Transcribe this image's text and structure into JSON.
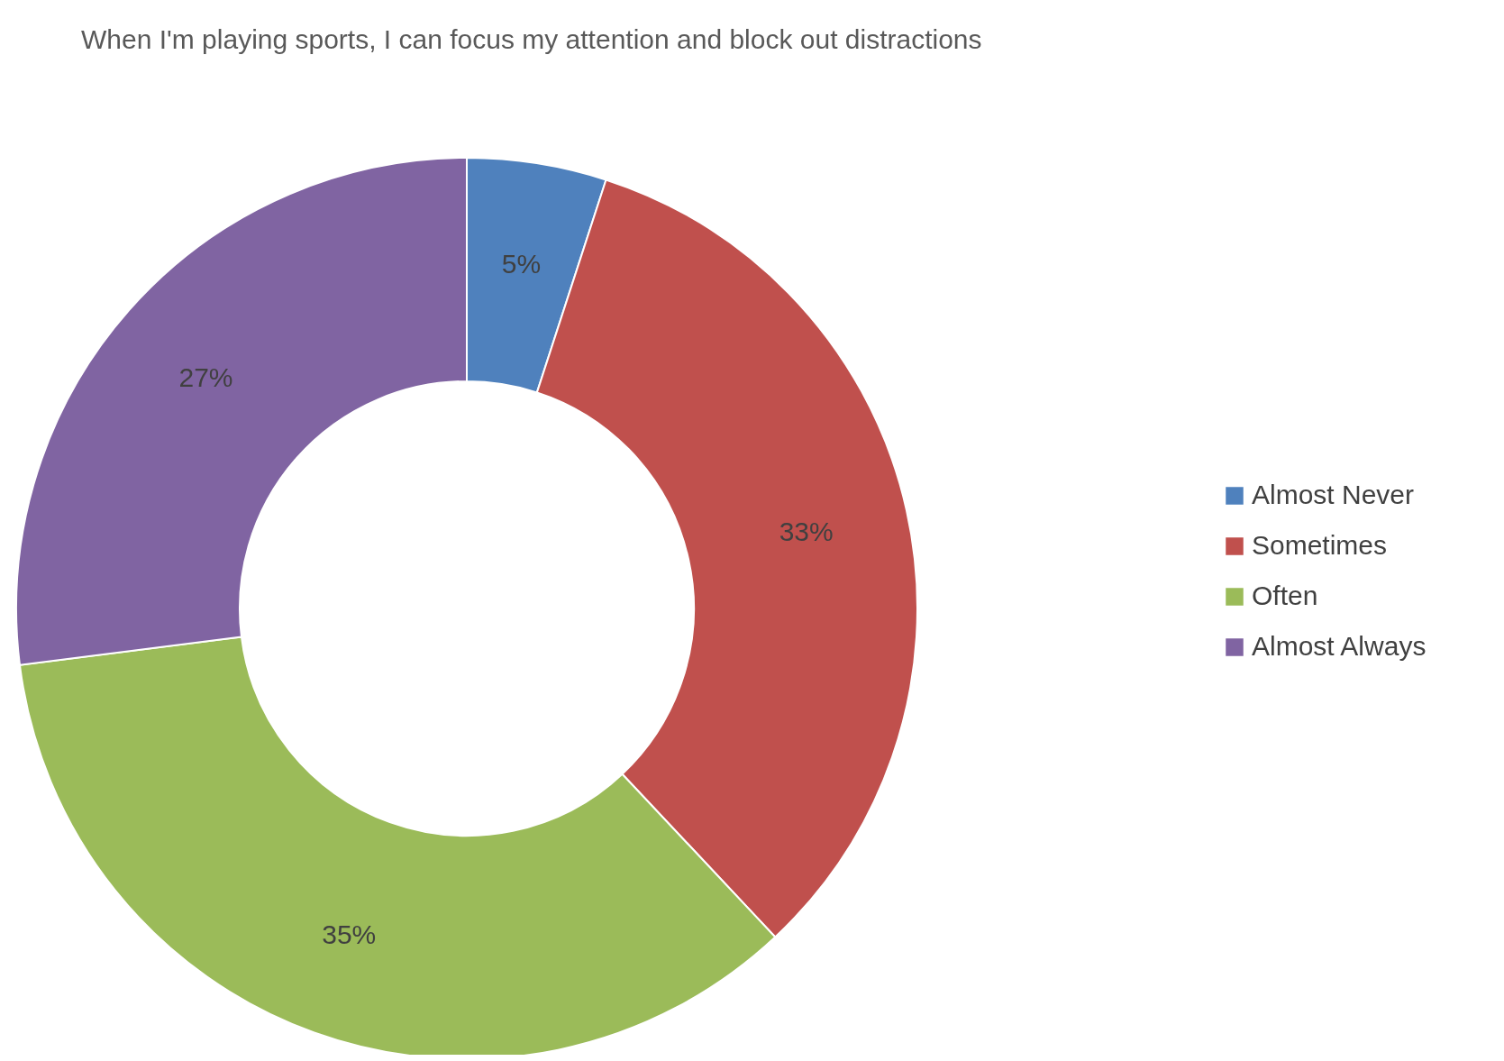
{
  "chart_data": {
    "type": "donut",
    "title": "When I'm playing sports, I can focus my attention and block out distractions",
    "categories": [
      "Almost Never",
      "Sometimes",
      "Often",
      "Almost Always"
    ],
    "values": [
      5,
      33,
      35,
      27
    ],
    "value_labels": [
      "5%",
      "33%",
      "35%",
      "27%"
    ],
    "colors": [
      "#4f81bd",
      "#c0504d",
      "#9bbb59",
      "#8064a2"
    ],
    "legend": "right"
  }
}
